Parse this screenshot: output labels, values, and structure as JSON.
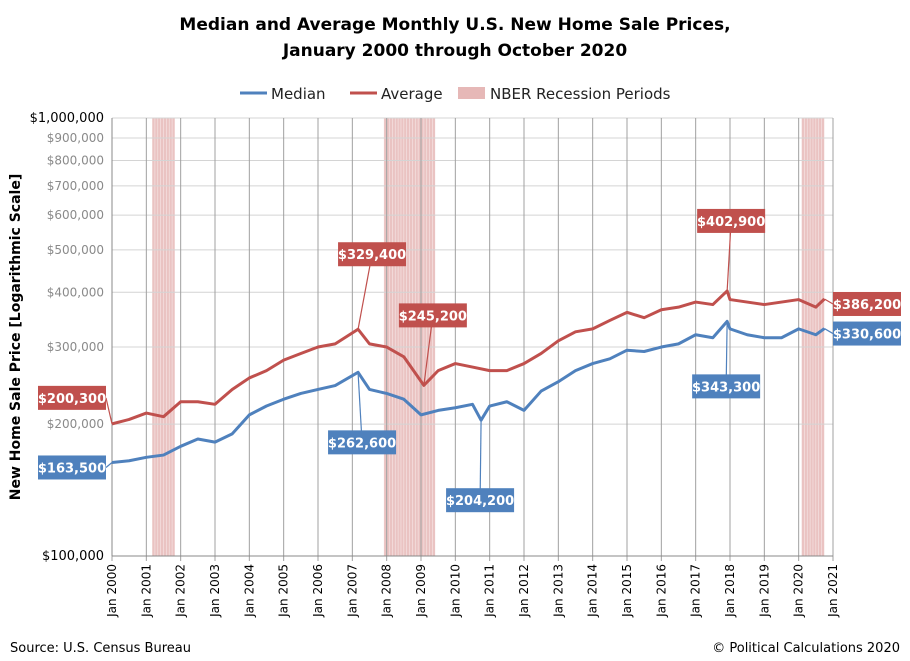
{
  "chart_data": {
    "type": "line",
    "title": [
      "Median and Average Monthly U.S. New Home Sale Prices,",
      "January 2000 through October 2020"
    ],
    "ylabel": "New Home Sale Price [Logarithmic Scale]",
    "yscale": "log",
    "ylim": [
      100000,
      1000000
    ],
    "yticks": [
      {
        "v": 100000,
        "label": "$100,000"
      },
      {
        "v": 200000,
        "label": "$200,000"
      },
      {
        "v": 300000,
        "label": "$300,000"
      },
      {
        "v": 400000,
        "label": "$400,000"
      },
      {
        "v": 500000,
        "label": "$500,000"
      },
      {
        "v": 600000,
        "label": "$600,000"
      },
      {
        "v": 700000,
        "label": "$700,000"
      },
      {
        "v": 800000,
        "label": "$800,000"
      },
      {
        "v": 900000,
        "label": "$900,000"
      },
      {
        "v": 1000000,
        "label": "$1,000,000"
      }
    ],
    "xlim": [
      "2000-01",
      "2021-01"
    ],
    "xticks": [
      "Jan 2000",
      "Jan 2001",
      "Jan 2002",
      "Jan 2003",
      "Jan 2004",
      "Jan 2005",
      "Jan 2006",
      "Jan 2007",
      "Jan 2008",
      "Jan 2009",
      "Jan 2010",
      "Jan 2011",
      "Jan 2012",
      "Jan 2013",
      "Jan 2014",
      "Jan 2015",
      "Jan 2016",
      "Jan 2017",
      "Jan 2018",
      "Jan 2019",
      "Jan 2020",
      "Jan 2021"
    ],
    "grid": true,
    "legend_placement": "top",
    "legend": [
      "Median",
      "Average",
      "NBER Recession Periods"
    ],
    "colors": {
      "median": "#4f81bd",
      "average": "#c0504d",
      "recession": "#e6b8b7"
    },
    "recessions": [
      [
        "2001-03",
        "2001-11"
      ],
      [
        "2007-12",
        "2009-06"
      ],
      [
        "2020-02",
        "2020-10"
      ]
    ],
    "series": [
      {
        "name": "Median",
        "points": [
          [
            "2000-01",
            163500
          ],
          [
            "2000-07",
            165000
          ],
          [
            "2001-01",
            168000
          ],
          [
            "2001-07",
            170000
          ],
          [
            "2002-01",
            178000
          ],
          [
            "2002-07",
            185000
          ],
          [
            "2003-01",
            182000
          ],
          [
            "2003-07",
            190000
          ],
          [
            "2004-01",
            210000
          ],
          [
            "2004-07",
            220000
          ],
          [
            "2005-01",
            228000
          ],
          [
            "2005-07",
            235000
          ],
          [
            "2006-01",
            240000
          ],
          [
            "2006-07",
            245000
          ],
          [
            "2007-03",
            262600
          ],
          [
            "2007-07",
            240000
          ],
          [
            "2008-01",
            235000
          ],
          [
            "2008-07",
            228000
          ],
          [
            "2009-01",
            210000
          ],
          [
            "2009-07",
            215000
          ],
          [
            "2010-01",
            218000
          ],
          [
            "2010-07",
            222000
          ],
          [
            "2010-10",
            204200
          ],
          [
            "2011-01",
            220000
          ],
          [
            "2011-07",
            225000
          ],
          [
            "2012-01",
            215000
          ],
          [
            "2012-07",
            238000
          ],
          [
            "2013-01",
            250000
          ],
          [
            "2013-07",
            265000
          ],
          [
            "2014-01",
            275000
          ],
          [
            "2014-07",
            282000
          ],
          [
            "2015-01",
            295000
          ],
          [
            "2015-07",
            293000
          ],
          [
            "2016-01",
            300000
          ],
          [
            "2016-07",
            305000
          ],
          [
            "2017-01",
            320000
          ],
          [
            "2017-07",
            315000
          ],
          [
            "2017-12",
            343300
          ],
          [
            "2018-01",
            330000
          ],
          [
            "2018-07",
            320000
          ],
          [
            "2019-01",
            315000
          ],
          [
            "2019-07",
            315000
          ],
          [
            "2020-01",
            330000
          ],
          [
            "2020-07",
            320000
          ],
          [
            "2020-10",
            330600
          ]
        ]
      },
      {
        "name": "Average",
        "points": [
          [
            "2000-01",
            200300
          ],
          [
            "2000-07",
            205000
          ],
          [
            "2001-01",
            212000
          ],
          [
            "2001-07",
            208000
          ],
          [
            "2002-01",
            225000
          ],
          [
            "2002-07",
            225000
          ],
          [
            "2003-01",
            222000
          ],
          [
            "2003-07",
            240000
          ],
          [
            "2004-01",
            255000
          ],
          [
            "2004-07",
            265000
          ],
          [
            "2005-01",
            280000
          ],
          [
            "2005-07",
            290000
          ],
          [
            "2006-01",
            300000
          ],
          [
            "2006-07",
            305000
          ],
          [
            "2007-03",
            329400
          ],
          [
            "2007-07",
            305000
          ],
          [
            "2008-01",
            300000
          ],
          [
            "2008-07",
            285000
          ],
          [
            "2009-02",
            245200
          ],
          [
            "2009-07",
            265000
          ],
          [
            "2010-01",
            275000
          ],
          [
            "2010-07",
            270000
          ],
          [
            "2011-01",
            265000
          ],
          [
            "2011-07",
            265000
          ],
          [
            "2012-01",
            275000
          ],
          [
            "2012-07",
            290000
          ],
          [
            "2013-01",
            310000
          ],
          [
            "2013-07",
            325000
          ],
          [
            "2014-01",
            330000
          ],
          [
            "2014-07",
            345000
          ],
          [
            "2015-01",
            360000
          ],
          [
            "2015-07",
            350000
          ],
          [
            "2016-01",
            365000
          ],
          [
            "2016-07",
            370000
          ],
          [
            "2017-01",
            380000
          ],
          [
            "2017-07",
            375000
          ],
          [
            "2017-12",
            402900
          ],
          [
            "2018-01",
            385000
          ],
          [
            "2018-07",
            380000
          ],
          [
            "2019-01",
            375000
          ],
          [
            "2019-07",
            380000
          ],
          [
            "2020-01",
            385000
          ],
          [
            "2020-07",
            370000
          ],
          [
            "2020-10",
            386200
          ]
        ]
      }
    ],
    "annotations": [
      {
        "series": "Average",
        "date": "2000-01",
        "label": "$200,300"
      },
      {
        "series": "Median",
        "date": "2000-01",
        "label": "$163,500"
      },
      {
        "series": "Average",
        "date": "2007-03",
        "label": "$329,400"
      },
      {
        "series": "Median",
        "date": "2007-03",
        "label": "$262,600"
      },
      {
        "series": "Average",
        "date": "2009-02",
        "label": "$245,200"
      },
      {
        "series": "Median",
        "date": "2010-10",
        "label": "$204,200"
      },
      {
        "series": "Average",
        "date": "2017-12",
        "label": "$402,900"
      },
      {
        "series": "Median",
        "date": "2017-12",
        "label": "$343,300"
      },
      {
        "series": "Average",
        "date": "2020-10",
        "label": "$386,200"
      },
      {
        "series": "Median",
        "date": "2020-10",
        "label": "$330,600"
      }
    ]
  },
  "footer": {
    "source": "Source: U.S. Census Bureau",
    "copyright": "© Political Calculations 2020"
  }
}
